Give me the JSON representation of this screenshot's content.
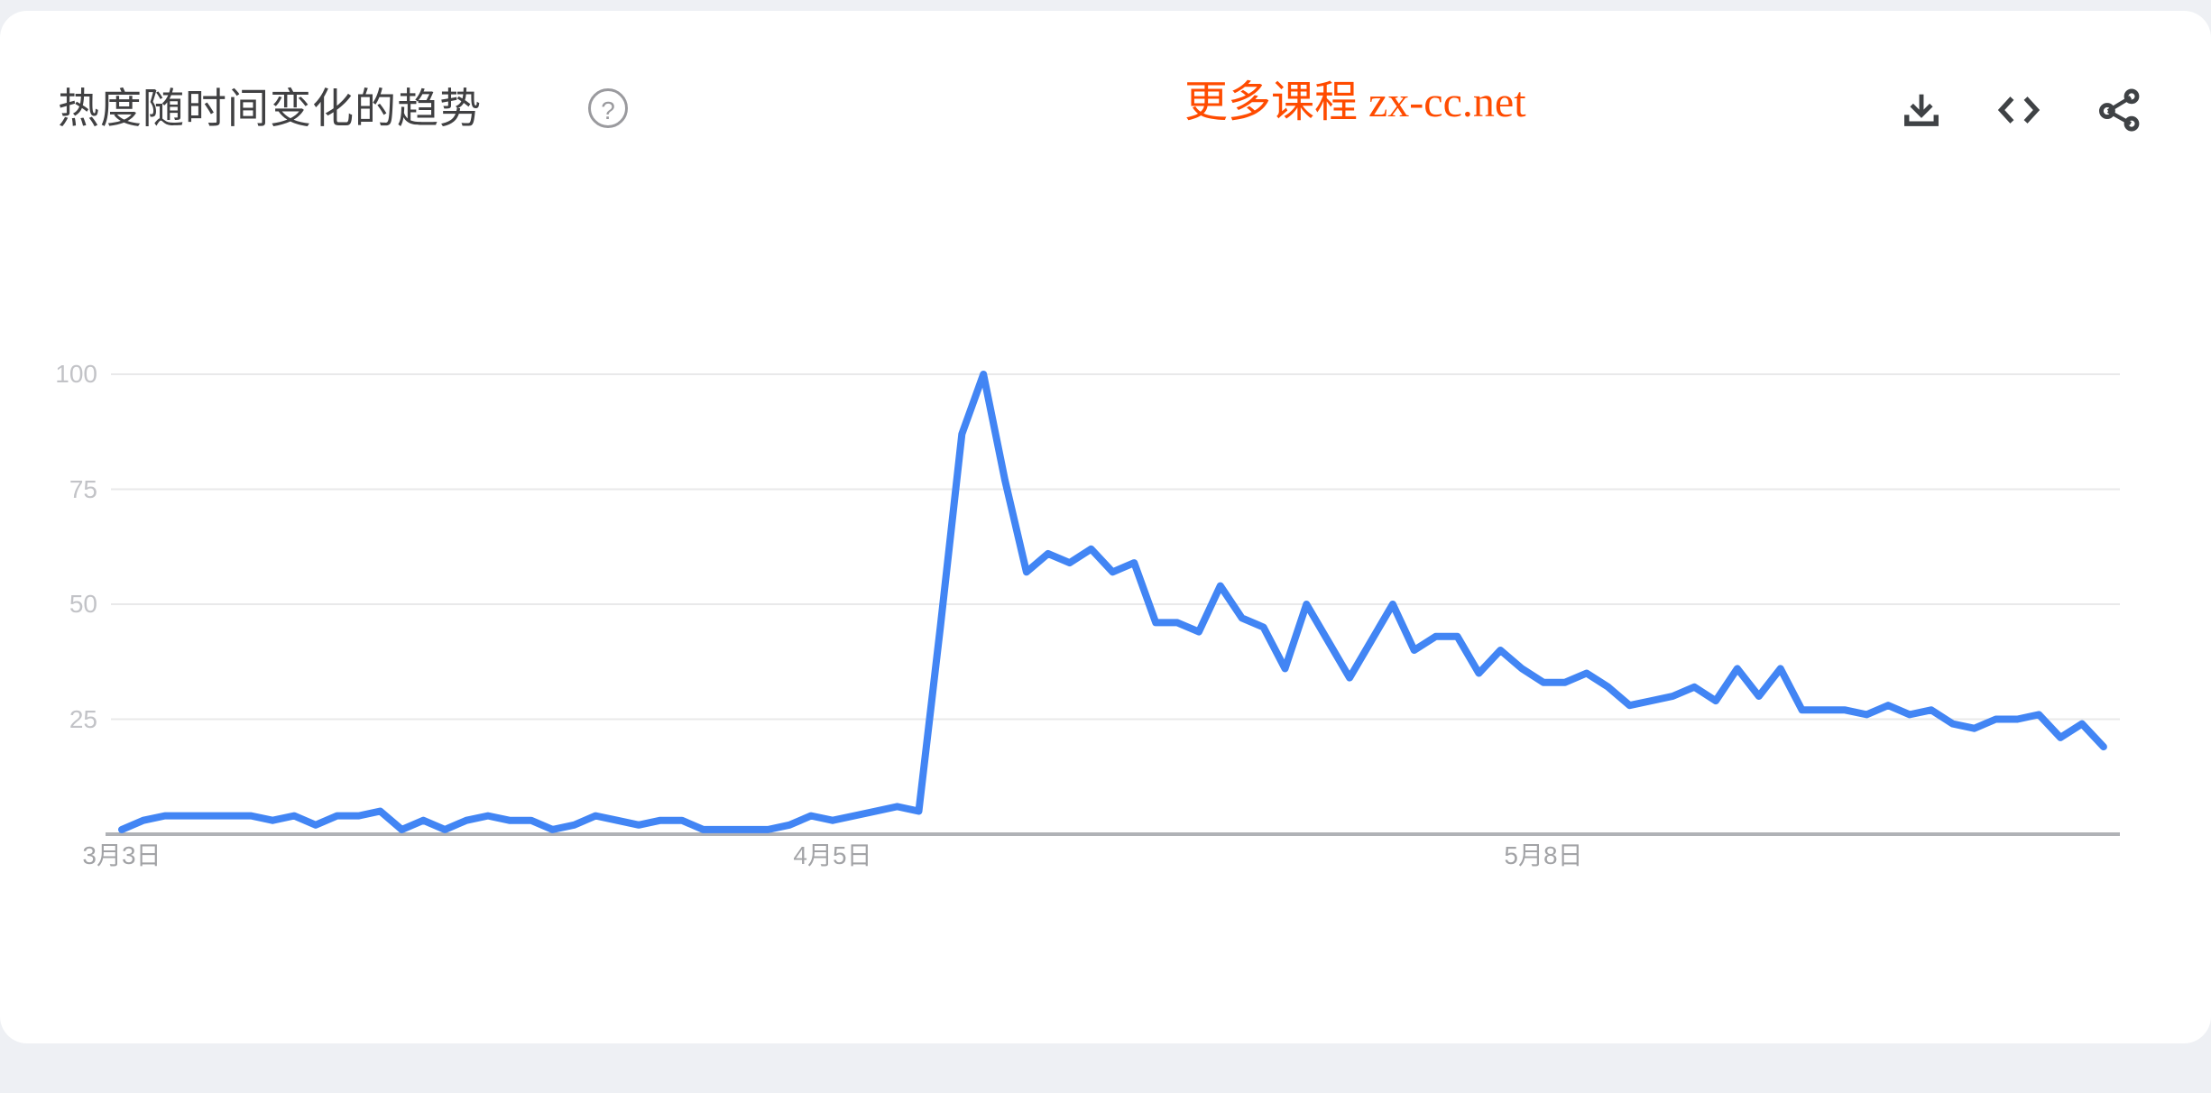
{
  "page": {
    "background_color": "#eef0f4",
    "card_color": "#ffffff"
  },
  "header": {
    "title": "热度随时间变化的趋势",
    "help_icon_glyph": "?",
    "watermark": {
      "text": "更多课程 zx-cc.net",
      "color": "#ff4b00"
    },
    "actions": [
      {
        "id": "download",
        "icon": "download-icon"
      },
      {
        "id": "embed-code",
        "icon": "code-icon"
      },
      {
        "id": "share",
        "icon": "share-icon"
      }
    ]
  },
  "chart_data": {
    "type": "line",
    "title": "热度随时间变化的趋势",
    "legend_position": "none",
    "grid": "horizontal",
    "line_color": "#4285f4",
    "gridline_color": "#e9e9ea",
    "axis_line_color": "#b0b2b6",
    "ylim": [
      0,
      100
    ],
    "y_ticks": [
      25,
      50,
      75,
      100
    ],
    "x_ticks": [
      {
        "label": "3月3日",
        "index": 0
      },
      {
        "label": "4月5日",
        "index": 33
      },
      {
        "label": "5月8日",
        "index": 66
      }
    ],
    "x": [
      "3月3日",
      "3月4日",
      "3月5日",
      "3月6日",
      "3月7日",
      "3月8日",
      "3月9日",
      "3月10日",
      "3月11日",
      "3月12日",
      "3月13日",
      "3月14日",
      "3月15日",
      "3月16日",
      "3月17日",
      "3月18日",
      "3月19日",
      "3月20日",
      "3月21日",
      "3月22日",
      "3月23日",
      "3月24日",
      "3月25日",
      "3月26日",
      "3月27日",
      "3月28日",
      "3月29日",
      "3月30日",
      "3月31日",
      "4月1日",
      "4月2日",
      "4月3日",
      "4月4日",
      "4月5日",
      "4月6日",
      "4月7日",
      "4月8日",
      "4月9日",
      "4月10日",
      "4月11日",
      "4月12日",
      "4月13日",
      "4月14日",
      "4月15日",
      "4月16日",
      "4月17日",
      "4月18日",
      "4月19日",
      "4月20日",
      "4月21日",
      "4月22日",
      "4月23日",
      "4月24日",
      "4月25日",
      "4月26日",
      "4月27日",
      "4月28日",
      "4月29日",
      "4月30日",
      "5月1日",
      "5月2日",
      "5月3日",
      "5月4日",
      "5月5日",
      "5月6日",
      "5月7日",
      "5月8日",
      "5月9日",
      "5月10日",
      "5月11日",
      "5月12日",
      "5月13日",
      "5月14日",
      "5月15日",
      "5月16日",
      "5月17日",
      "5月18日",
      "5月19日",
      "5月20日",
      "5月21日",
      "5月22日",
      "5月23日",
      "5月24日",
      "5月25日",
      "5月26日",
      "5月27日",
      "5月28日",
      "5月29日",
      "5月30日",
      "5月31日",
      "6月1日",
      "6月2日",
      "6月3日"
    ],
    "values": [
      1,
      3,
      4,
      4,
      4,
      4,
      4,
      3,
      4,
      2,
      4,
      4,
      5,
      1,
      3,
      1,
      3,
      4,
      3,
      3,
      1,
      2,
      4,
      3,
      2,
      3,
      3,
      1,
      1,
      1,
      1,
      2,
      4,
      3,
      4,
      5,
      6,
      5,
      45,
      87,
      100,
      77,
      57,
      61,
      59,
      62,
      57,
      59,
      46,
      46,
      44,
      54,
      47,
      45,
      36,
      50,
      42,
      34,
      42,
      50,
      40,
      43,
      43,
      35,
      40,
      36,
      33,
      33,
      35,
      32,
      28,
      29,
      30,
      32,
      29,
      36,
      30,
      36,
      27,
      27,
      27,
      26,
      28,
      26,
      27,
      24,
      23,
      25,
      25,
      26,
      21,
      24,
      19
    ]
  }
}
